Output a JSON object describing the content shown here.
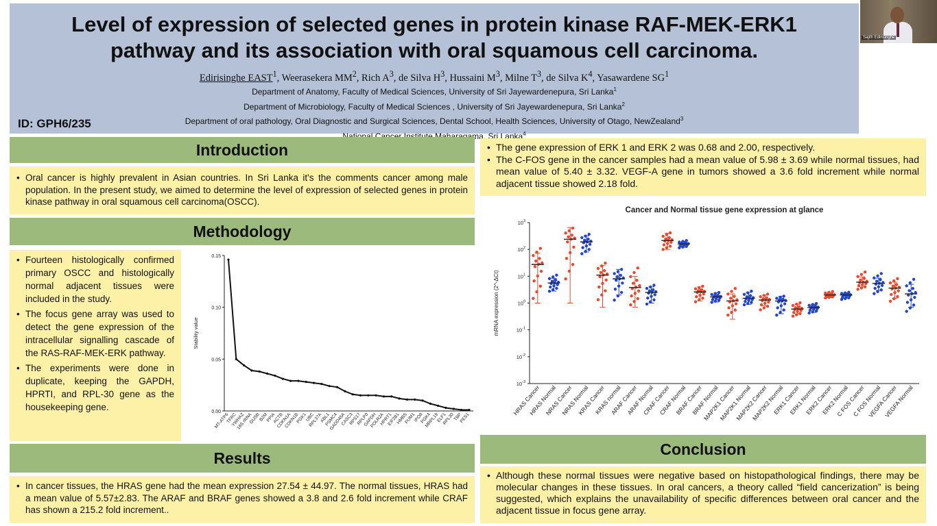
{
  "header": {
    "title_line1": "Level of expression of selected genes in protein kinase RAF-MEK-ERK1",
    "title_line2": "pathway and its association with oral squamous cell carcinoma.",
    "authors": [
      {
        "name": "Edirisinghe EAST",
        "aff": "1"
      },
      {
        "name": "Weerasekera MM",
        "aff": "2"
      },
      {
        "name": "Rich A",
        "aff": "3"
      },
      {
        "name": "de Silva H",
        "aff": "3"
      },
      {
        "name": "Hussaini M",
        "aff": "3"
      },
      {
        "name": "Milne T",
        "aff": "3"
      },
      {
        "name": "de Silva K",
        "aff": "4"
      },
      {
        "name": "Yasawardene SG",
        "aff": "1"
      }
    ],
    "affiliations": [
      {
        "text": "Department of Anatomy, Faculty of Medical Sciences, University of Sri Jayewardenepura, Sri Lanka",
        "sup": "1"
      },
      {
        "text": "Department of Microbiology, Faculty of Medical Sciences , University of Sri Jayewardenepura, Sri Lanka",
        "sup": "2"
      },
      {
        "text": "Department of oral pathology, Oral Diagnostic and Surgical Sciences, Dental School, Health Sciences, University of Otago, NewZealand",
        "sup": "3"
      },
      {
        "text": "National Cancer Institute Maharagama, Sri Lanka",
        "sup": "4"
      }
    ],
    "poster_id": "ID: GPH6/235"
  },
  "video": {
    "participant_name": "Sajith Edirisinghe"
  },
  "introduction": {
    "heading": "Introduction",
    "bullets": [
      "Oral cancer is highly prevalent in Asian countries. In Sri Lanka it's the comments cancer among male population. In the present study, we aimed to determine the level of expression of selected genes in protein kinase pathway in oral squamous cell carcinoma(OSCC)."
    ]
  },
  "methodology": {
    "heading": "Methodology",
    "bullets": [
      "Fourteen histologically confirmed primary OSCC and histologically normal adjacent tissues were included in the study.",
      "The focus gene array was used to detect the gene expression of the intracellular signalling cascade of the RAS-RAF-MEK-ERK pathway.",
      "The experiments were done in duplicate, keeping the GAPDH, HPRTI, and RPL-30 gene as the housekeeping gene."
    ]
  },
  "results": {
    "heading": "Results",
    "bullets": [
      "In cancer tissues, the HRAS gene had the mean expression 27.54 ± 44.97. The normal tissues, HRAS had a mean value of 5.57±2.83. The ARAF and BRAF genes showed a 3.8 and 2.6 fold increment while CRAF has shown a 215.2 fold increment.."
    ]
  },
  "right_results": {
    "bullets": [
      "The gene expression of ERK 1 and ERK 2 was 0.68 and 2.00, respectively.",
      "The C-FOS gene in the cancer samples had a mean value of 5.98 ± 3.69 while normal tissues, had mean value of 5.40 ± 3.32. VEGF-A gene in tumors showed a 3.6 fold increment while normal adjacent tissue showed 2.18 fold."
    ]
  },
  "conclusion": {
    "heading": "Conclusion",
    "bullets": [
      "Although these normal tissues were negative based on histopathological findings, there may be molecular changes in these tissues.  In oral cancers, a theory called “field cancerization” is being suggested, which explains the unavailability of specific differences between oral cancer and the adjacent tissue in focus gene array."
    ]
  },
  "chart_data": [
    {
      "type": "line",
      "title": "",
      "xlabel": "",
      "ylabel": "Stability value",
      "ylim": [
        0,
        0.15
      ],
      "yticks": [
        "0.00",
        "0.05",
        "0.10",
        "0.15"
      ],
      "categories": [
        "MT-ATP6",
        "TFRC",
        "YWHAZ",
        "18S rRNA",
        "GUSB",
        "B2M",
        "PPIA",
        "ACTB",
        "CDKN1A",
        "CDKN1B",
        "PGK1",
        "UBC",
        "RPL37A",
        "ABL1",
        "PSMC4",
        "GADD45A",
        "CASC3",
        "RPS17",
        "RPLP0",
        "GAPDH",
        "POLR2A",
        "HPRT1",
        "EIF2B1",
        "HMBS",
        "PUM1",
        "IPO8",
        "PGK4",
        "MRPL19",
        "ELF1",
        "RPL30",
        "TBP",
        "PES1"
      ],
      "values": [
        0.146,
        0.05,
        0.044,
        0.039,
        0.038,
        0.036,
        0.034,
        0.031,
        0.029,
        0.029,
        0.028,
        0.027,
        0.026,
        0.024,
        0.023,
        0.019,
        0.016,
        0.015,
        0.015,
        0.015,
        0.014,
        0.014,
        0.012,
        0.011,
        0.011,
        0.01,
        0.007,
        0.005,
        0.003,
        0.002,
        0.001,
        0.001
      ]
    },
    {
      "type": "scatter",
      "title": "Cancer and Normal tissue gene expression at glance",
      "xlabel": "",
      "ylabel": "mRNA expression (2^-ΔCt)",
      "yscale": "log",
      "ylim": [
        0.001,
        1000
      ],
      "yticks": [
        {
          "base": "10",
          "exp": "3"
        },
        {
          "base": "10",
          "exp": "2"
        },
        {
          "base": "10",
          "exp": "1"
        },
        {
          "base": "10",
          "exp": "0"
        },
        {
          "base": "10",
          "exp": "-1"
        },
        {
          "base": "10",
          "exp": "-2"
        },
        {
          "base": "10",
          "exp": "-3"
        }
      ],
      "colors": {
        "cancer": "#e64a2e",
        "normal": "#2346c8"
      },
      "groups": [
        {
          "label": "HRAS Cancer",
          "kind": "cancer",
          "mean": 27.5,
          "lo": 1.0,
          "hi": 72,
          "min": 1.0,
          "max": 130
        },
        {
          "label": "HRAS Normal",
          "kind": "normal",
          "mean": 5.6,
          "lo": 2.8,
          "hi": 8.4,
          "min": 2.5,
          "max": 12
        },
        {
          "label": "NRAS Cancer",
          "kind": "cancer",
          "mean": 240,
          "lo": 1.0,
          "hi": 650,
          "min": 5,
          "max": 700
        },
        {
          "label": "NRAS Normal",
          "kind": "normal",
          "mean": 190,
          "lo": 80,
          "hi": 320,
          "min": 60,
          "max": 400
        },
        {
          "label": "KRAS Cancer",
          "kind": "cancer",
          "mean": 11,
          "lo": 0.7,
          "hi": 25,
          "min": 1.0,
          "max": 35
        },
        {
          "label": "KRAS normal",
          "kind": "normal",
          "mean": 8,
          "lo": 2,
          "hi": 18,
          "min": 1.0,
          "max": 20
        },
        {
          "label": "ARAF Cancer",
          "kind": "cancer",
          "mean": 3.8,
          "lo": 0.7,
          "hi": 10,
          "min": 0.7,
          "max": 25
        },
        {
          "label": "ARAF Normal",
          "kind": "normal",
          "mean": 2.5,
          "lo": 1.0,
          "hi": 4,
          "min": 0.8,
          "max": 5
        },
        {
          "label": "CRAF Cancer",
          "kind": "cancer",
          "mean": 215,
          "lo": 100,
          "hi": 400,
          "min": 90,
          "max": 450
        },
        {
          "label": "CRAF Normal",
          "kind": "normal",
          "mean": 160,
          "lo": 120,
          "hi": 200,
          "min": 110,
          "max": 220
        },
        {
          "label": "BRAF Cancer",
          "kind": "cancer",
          "mean": 2.6,
          "lo": 1.2,
          "hi": 4,
          "min": 1.0,
          "max": 4.5
        },
        {
          "label": "BRAF Normal",
          "kind": "normal",
          "mean": 1.7,
          "lo": 1.1,
          "hi": 2.4,
          "min": 1.0,
          "max": 2.6
        },
        {
          "label": "MAP2K1 Cancer",
          "kind": "cancer",
          "mean": 1.2,
          "lo": 0.25,
          "hi": 2.2,
          "min": 0.3,
          "max": 4
        },
        {
          "label": "MAP2K1 Normal",
          "kind": "normal",
          "mean": 1.5,
          "lo": 0.9,
          "hi": 2.5,
          "min": 0.8,
          "max": 3
        },
        {
          "label": "MAP2K2 Cancer",
          "kind": "cancer",
          "mean": 1.3,
          "lo": 0.8,
          "hi": 2.0,
          "min": 0.5,
          "max": 2.3
        },
        {
          "label": "MAP2K2 Normal",
          "kind": "normal",
          "mean": 1.2,
          "lo": 0.4,
          "hi": 1.8,
          "min": 0.3,
          "max": 1.9
        },
        {
          "label": "ERK1 Cancer",
          "kind": "cancer",
          "mean": 0.6,
          "lo": 0.4,
          "hi": 0.9,
          "min": 0.3,
          "max": 1.1
        },
        {
          "label": "ERK1 Normal",
          "kind": "normal",
          "mean": 0.68,
          "lo": 0.45,
          "hi": 0.9,
          "min": 0.4,
          "max": 1.0
        },
        {
          "label": "ERK2 Cancer",
          "kind": "cancer",
          "mean": 2.0,
          "lo": 1.6,
          "hi": 2.4,
          "min": 1.5,
          "max": 2.8
        },
        {
          "label": "ERK2 Normal",
          "kind": "normal",
          "mean": 2.0,
          "lo": 1.5,
          "hi": 2.4,
          "min": 1.3,
          "max": 2.6
        },
        {
          "label": "C FOS Cancer",
          "kind": "cancer",
          "mean": 6.0,
          "lo": 4.0,
          "hi": 9.5,
          "min": 3.0,
          "max": 16
        },
        {
          "label": "C FOS Normal",
          "kind": "normal",
          "mean": 5.4,
          "lo": 3.0,
          "hi": 8.5,
          "min": 2.0,
          "max": 14
        },
        {
          "label": "VEGFA Cancer",
          "kind": "cancer",
          "mean": 3.6,
          "lo": 1.5,
          "hi": 6,
          "min": 1.0,
          "max": 9
        },
        {
          "label": "VEGFA Normal",
          "kind": "normal",
          "mean": 2.2,
          "lo": 0.7,
          "hi": 5,
          "min": 0.4,
          "max": 9
        }
      ]
    }
  ]
}
